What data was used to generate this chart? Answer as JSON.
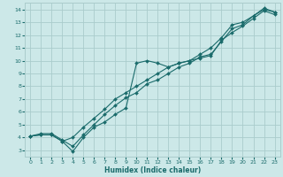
{
  "xlabel": "Humidex (Indice chaleur)",
  "bg_color": "#cce8e8",
  "grid_color": "#aacccc",
  "line_color": "#1a6b6b",
  "spine_color": "#888888",
  "xlim": [
    -0.5,
    23.5
  ],
  "ylim": [
    2.5,
    14.5
  ],
  "xticks": [
    0,
    1,
    2,
    3,
    4,
    5,
    6,
    7,
    8,
    9,
    10,
    11,
    12,
    13,
    14,
    15,
    16,
    17,
    18,
    19,
    20,
    21,
    22,
    23
  ],
  "yticks": [
    3,
    4,
    5,
    6,
    7,
    8,
    9,
    10,
    11,
    12,
    13,
    14
  ],
  "series": [
    {
      "x": [
        0,
        1,
        2,
        3,
        4,
        5,
        6,
        7,
        8,
        9,
        10,
        11,
        12,
        13,
        14,
        15,
        16,
        17,
        18,
        19,
        20,
        21,
        22,
        23
      ],
      "y": [
        4.1,
        4.3,
        4.3,
        3.8,
        3.3,
        4.2,
        5.0,
        5.8,
        6.5,
        7.1,
        7.5,
        8.2,
        8.5,
        9.0,
        9.5,
        9.8,
        10.3,
        10.5,
        11.5,
        12.5,
        12.8,
        13.5,
        14.1,
        13.8
      ]
    },
    {
      "x": [
        0,
        1,
        2,
        3,
        4,
        5,
        6,
        7,
        8,
        9,
        10,
        11,
        12,
        13,
        14,
        15,
        16,
        17,
        18,
        19,
        20,
        21,
        22,
        23
      ],
      "y": [
        4.1,
        4.2,
        4.2,
        3.7,
        2.9,
        4.0,
        4.8,
        5.2,
        5.8,
        6.3,
        9.8,
        10.0,
        9.8,
        9.5,
        9.8,
        10.0,
        10.2,
        10.4,
        11.6,
        12.2,
        12.7,
        13.3,
        13.9,
        13.6
      ]
    },
    {
      "x": [
        0,
        1,
        2,
        3,
        4,
        5,
        6,
        7,
        8,
        9,
        10,
        11,
        12,
        13,
        14,
        15,
        16,
        17,
        18,
        19,
        20,
        21,
        22,
        23
      ],
      "y": [
        4.1,
        4.2,
        4.2,
        3.7,
        4.0,
        4.8,
        5.5,
        6.2,
        7.0,
        7.5,
        8.0,
        8.5,
        9.0,
        9.5,
        9.8,
        10.0,
        10.5,
        11.0,
        11.8,
        12.8,
        13.0,
        13.5,
        14.0,
        13.8
      ]
    }
  ]
}
